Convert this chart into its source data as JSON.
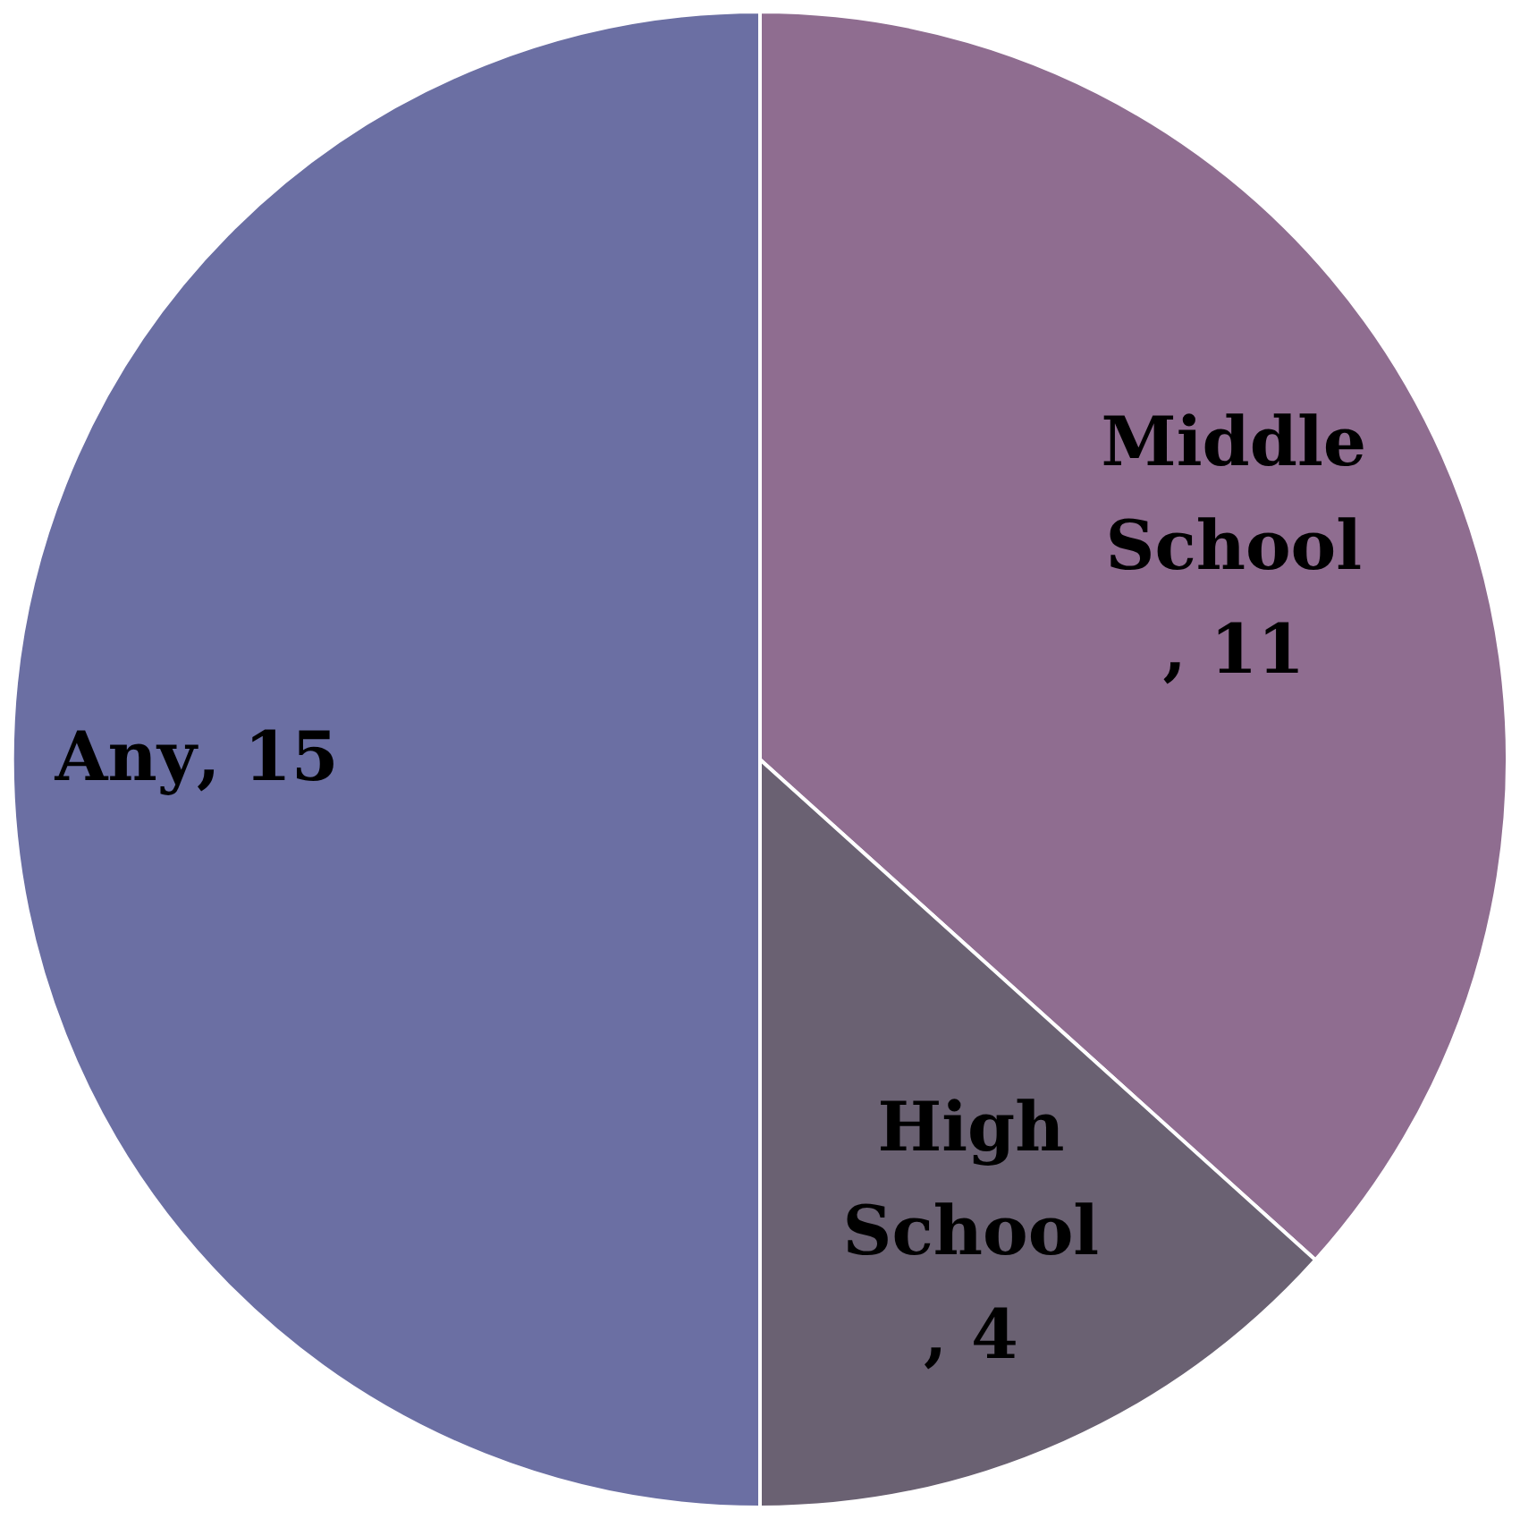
{
  "chart_data": {
    "type": "pie",
    "categories": [
      "Middle School",
      "High School",
      "Any"
    ],
    "values": [
      11,
      4,
      15
    ],
    "colors": [
      "#8f6d90",
      "#6a6172",
      "#6b6fa3"
    ],
    "value_labels": [
      ", 11",
      ", 4",
      ", 15"
    ]
  }
}
